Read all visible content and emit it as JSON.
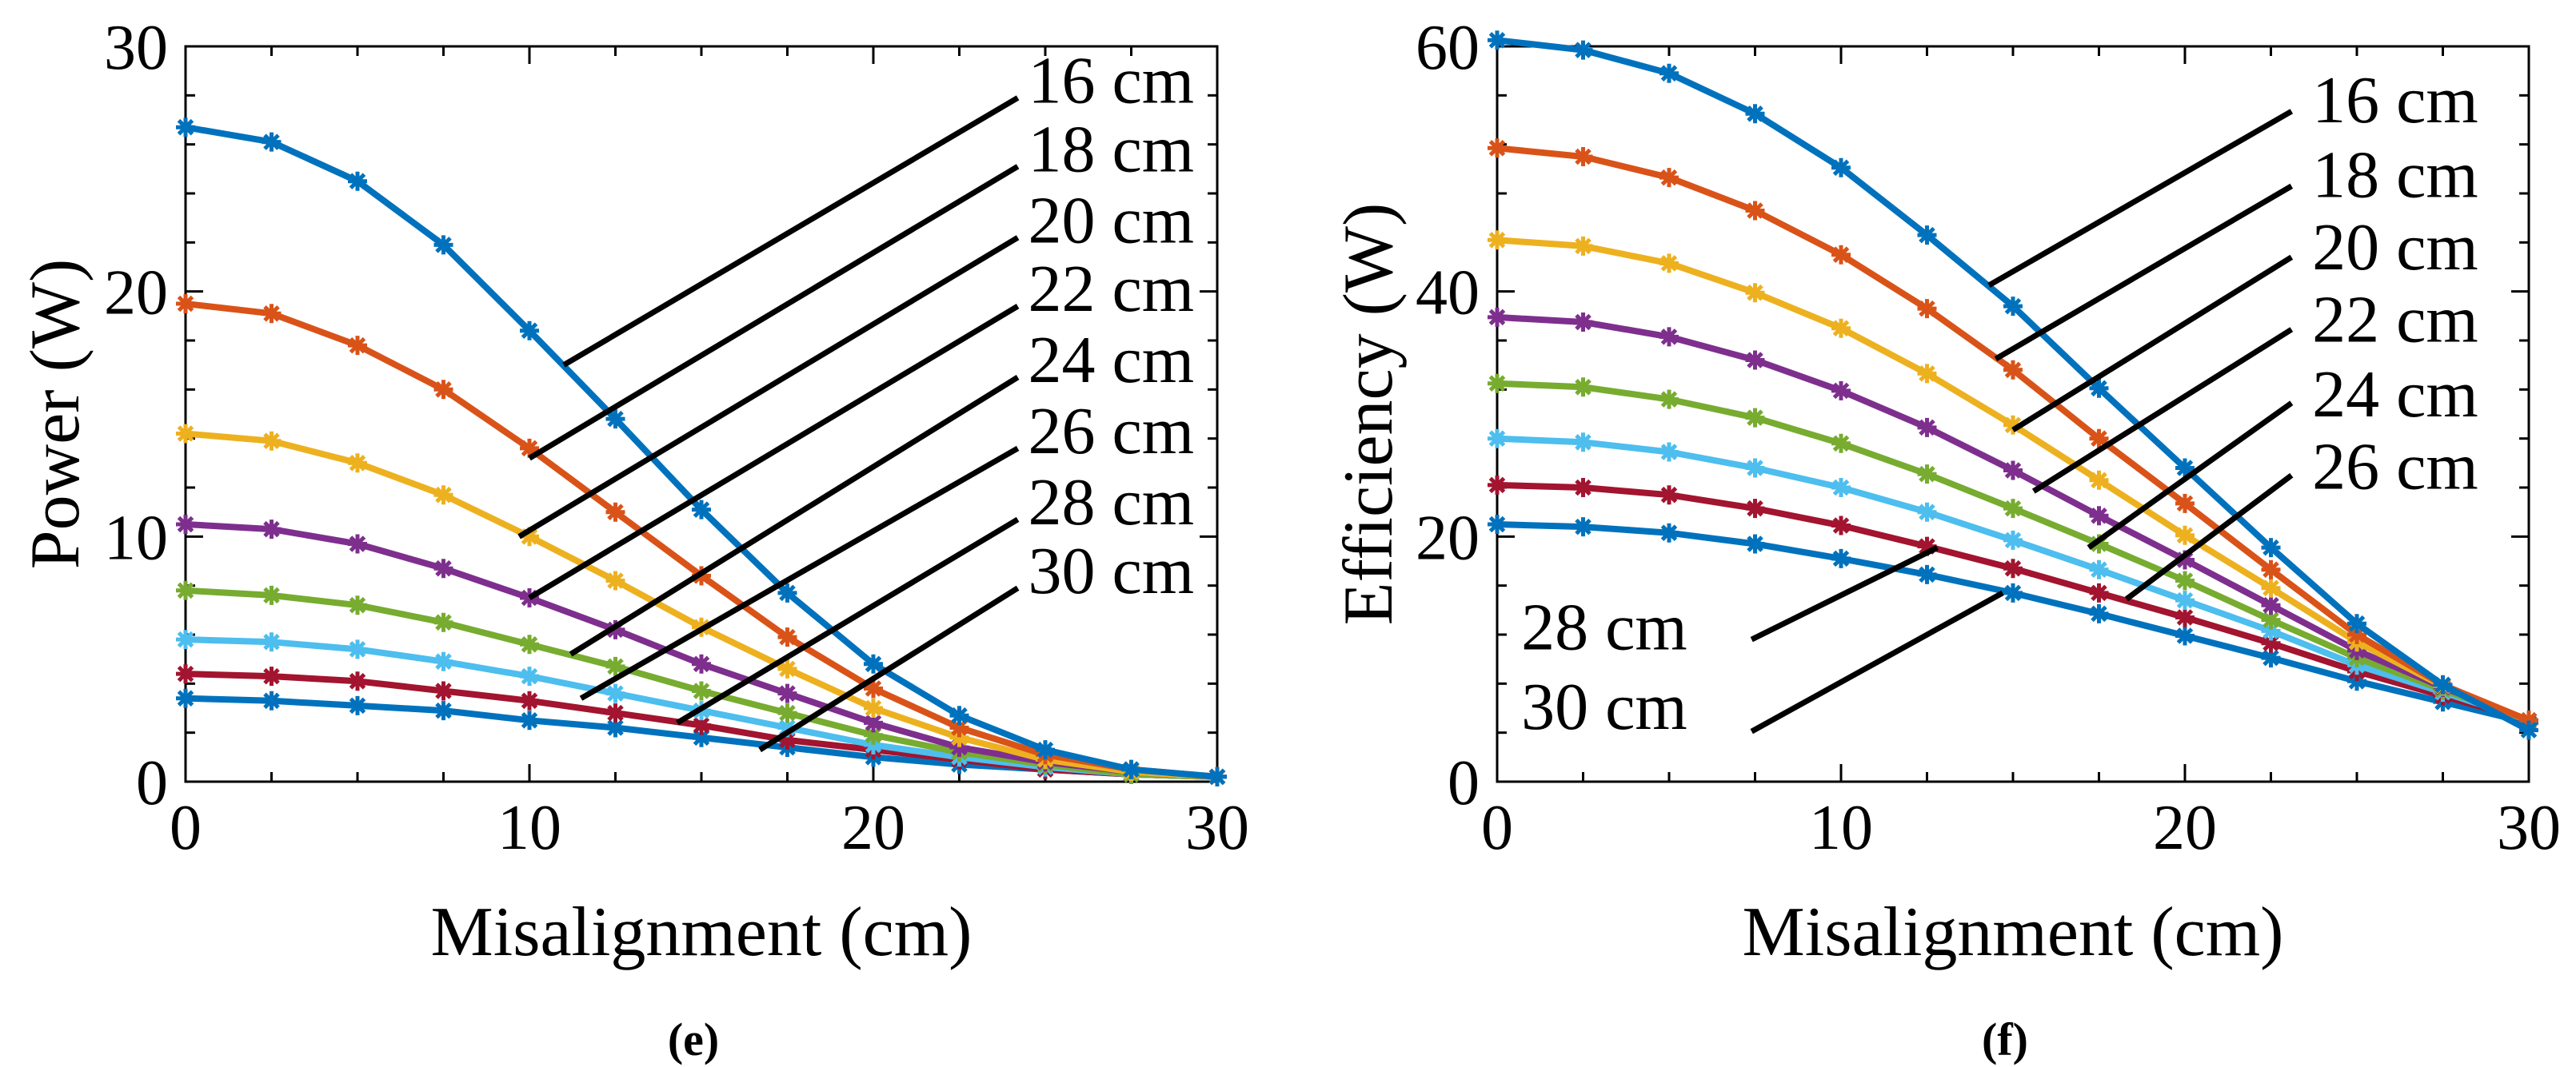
{
  "chart_data": [
    {
      "type": "line",
      "panel_caption": "(e)",
      "xlabel": "Misalignment (cm)",
      "ylabel": "Power (W)",
      "xlim": [
        0,
        30
      ],
      "ylim": [
        0,
        30
      ],
      "xticks": [
        0,
        10,
        20,
        30
      ],
      "yticks": [
        0,
        10,
        20,
        30
      ],
      "x": [
        0,
        2.5,
        5,
        7.5,
        10,
        12.5,
        15,
        17.5,
        20,
        22.5,
        25,
        27.5,
        30
      ],
      "series": [
        {
          "name": "16 cm",
          "color": "#0072BD",
          "values": [
            26.7,
            26.1,
            24.5,
            21.9,
            18.4,
            14.8,
            11.1,
            7.7,
            4.8,
            2.7,
            1.3,
            0.5,
            0.2
          ]
        },
        {
          "name": "18 cm",
          "color": "#D95319",
          "values": [
            19.5,
            19.1,
            17.8,
            16.0,
            13.6,
            11.0,
            8.4,
            5.9,
            3.8,
            2.2,
            1.1,
            0.5,
            0.2
          ]
        },
        {
          "name": "20 cm",
          "color": "#EDB120",
          "values": [
            14.2,
            13.9,
            13.0,
            11.7,
            10.0,
            8.2,
            6.3,
            4.6,
            3.0,
            1.8,
            0.9,
            0.4,
            0.2
          ]
        },
        {
          "name": "22 cm",
          "color": "#7E2F8E",
          "values": [
            10.5,
            10.3,
            9.7,
            8.7,
            7.5,
            6.2,
            4.8,
            3.6,
            2.4,
            1.4,
            0.8,
            0.4,
            0.2
          ]
        },
        {
          "name": "24 cm",
          "color": "#77AC30",
          "values": [
            7.8,
            7.6,
            7.2,
            6.5,
            5.6,
            4.7,
            3.7,
            2.8,
            1.9,
            1.2,
            0.7,
            0.3,
            0.2
          ]
        },
        {
          "name": "26 cm",
          "color": "#4DBEEE",
          "values": [
            5.8,
            5.7,
            5.4,
            4.9,
            4.3,
            3.6,
            2.9,
            2.2,
            1.5,
            1.0,
            0.6,
            0.3,
            0.2
          ]
        },
        {
          "name": "28 cm",
          "color": "#A2142F",
          "values": [
            4.4,
            4.3,
            4.1,
            3.7,
            3.3,
            2.8,
            2.3,
            1.7,
            1.3,
            0.9,
            0.5,
            0.3,
            0.2
          ]
        },
        {
          "name": "30 cm",
          "color": "#0072BD",
          "values": [
            3.4,
            3.3,
            3.1,
            2.9,
            2.5,
            2.2,
            1.8,
            1.4,
            1.0,
            0.7,
            0.5,
            0.3,
            0.2
          ]
        }
      ],
      "annotations": [
        {
          "text": "16 cm",
          "text_at": [
            24.5,
            27.7
          ],
          "from": [
            24.2,
            27.9
          ],
          "to": [
            11.0,
            17.0
          ]
        },
        {
          "text": "18 cm",
          "text_at": [
            24.5,
            24.9
          ],
          "from": [
            24.2,
            25.1
          ],
          "to": [
            10.0,
            13.2
          ]
        },
        {
          "text": "20 cm",
          "text_at": [
            24.5,
            22.0
          ],
          "from": [
            24.2,
            22.2
          ],
          "to": [
            9.7,
            10.0
          ]
        },
        {
          "text": "22 cm",
          "text_at": [
            24.5,
            19.2
          ],
          "from": [
            24.2,
            19.4
          ],
          "to": [
            10.0,
            7.5
          ]
        },
        {
          "text": "24 cm",
          "text_at": [
            24.5,
            16.3
          ],
          "from": [
            24.2,
            16.5
          ],
          "to": [
            11.2,
            5.2
          ]
        },
        {
          "text": "26 cm",
          "text_at": [
            24.5,
            13.4
          ],
          "from": [
            24.2,
            13.6
          ],
          "to": [
            11.5,
            3.4
          ]
        },
        {
          "text": "28 cm",
          "text_at": [
            24.5,
            10.5
          ],
          "from": [
            24.2,
            10.7
          ],
          "to": [
            14.3,
            2.4
          ]
        },
        {
          "text": "30 cm",
          "text_at": [
            24.5,
            7.7
          ],
          "from": [
            24.2,
            7.9
          ],
          "to": [
            16.7,
            1.3
          ]
        }
      ]
    },
    {
      "type": "line",
      "panel_caption": "(f)",
      "xlabel": "Misalignment (cm)",
      "ylabel": "Efficiency (W)",
      "xlim": [
        0,
        30
      ],
      "ylim": [
        0,
        60
      ],
      "xticks": [
        0,
        10,
        20,
        30
      ],
      "yticks": [
        0,
        20,
        40,
        60
      ],
      "x": [
        0,
        2.5,
        5,
        7.5,
        10,
        12.5,
        15,
        17.5,
        20,
        22.5,
        25,
        27.5,
        30
      ],
      "series": [
        {
          "name": "16 cm",
          "color": "#0072BD",
          "values": [
            60.5,
            59.7,
            57.8,
            54.5,
            50.1,
            44.6,
            38.8,
            32.1,
            25.6,
            19.1,
            12.9,
            7.9,
            4.2
          ]
        },
        {
          "name": "18 cm",
          "color": "#D95319",
          "values": [
            51.7,
            51.0,
            49.3,
            46.6,
            43.0,
            38.6,
            33.6,
            28.0,
            22.7,
            17.3,
            12.0,
            7.9,
            5.0
          ]
        },
        {
          "name": "20 cm",
          "color": "#EDB120",
          "values": [
            44.2,
            43.7,
            42.3,
            39.9,
            37.0,
            33.3,
            29.1,
            24.6,
            20.1,
            15.8,
            11.4,
            7.8,
            5.0
          ]
        },
        {
          "name": "22 cm",
          "color": "#7E2F8E",
          "values": [
            37.9,
            37.5,
            36.3,
            34.4,
            31.9,
            28.9,
            25.4,
            21.7,
            18.1,
            14.4,
            10.7,
            7.7,
            5.0
          ]
        },
        {
          "name": "24 cm",
          "color": "#77AC30",
          "values": [
            32.5,
            32.2,
            31.2,
            29.7,
            27.6,
            25.1,
            22.3,
            19.4,
            16.4,
            13.2,
            10.1,
            7.5,
            5.0
          ]
        },
        {
          "name": "26 cm",
          "color": "#4DBEEE",
          "values": [
            28.0,
            27.7,
            26.9,
            25.6,
            24.0,
            22.0,
            19.7,
            17.3,
            14.8,
            12.3,
            9.5,
            7.3,
            5.0
          ]
        },
        {
          "name": "28 cm",
          "color": "#A2142F",
          "values": [
            24.2,
            24.0,
            23.4,
            22.3,
            20.9,
            19.2,
            17.4,
            15.4,
            13.4,
            11.3,
            9.0,
            7.0,
            5.0
          ]
        },
        {
          "name": "30 cm",
          "color": "#0072BD",
          "values": [
            21.0,
            20.8,
            20.3,
            19.4,
            18.2,
            16.9,
            15.4,
            13.7,
            11.9,
            10.1,
            8.2,
            6.5,
            4.8
          ]
        }
      ],
      "annotations": [
        {
          "text": "16 cm",
          "text_at": [
            23.7,
            53.8
          ],
          "from": [
            23.1,
            54.7
          ],
          "to": [
            14.3,
            40.5
          ]
        },
        {
          "text": "18 cm",
          "text_at": [
            23.7,
            47.7
          ],
          "from": [
            23.1,
            48.6
          ],
          "to": [
            14.5,
            34.5
          ]
        },
        {
          "text": "20 cm",
          "text_at": [
            23.7,
            41.8
          ],
          "from": [
            23.1,
            42.8
          ],
          "to": [
            15.0,
            28.7
          ]
        },
        {
          "text": "22 cm",
          "text_at": [
            23.7,
            35.9
          ],
          "from": [
            23.1,
            36.9
          ],
          "to": [
            15.6,
            23.7
          ]
        },
        {
          "text": "24 cm",
          "text_at": [
            23.7,
            29.8
          ],
          "from": [
            23.1,
            30.9
          ],
          "to": [
            17.2,
            19.1
          ]
        },
        {
          "text": "26 cm",
          "text_at": [
            23.7,
            23.9
          ],
          "from": [
            23.1,
            25.0
          ],
          "to": [
            18.3,
            14.9
          ]
        },
        {
          "text": "28 cm",
          "text_at": [
            0.7,
            10.8
          ],
          "from": [
            7.4,
            11.6
          ],
          "to": [
            12.8,
            19.1
          ]
        },
        {
          "text": "30 cm",
          "text_at": [
            0.7,
            4.3
          ],
          "from": [
            7.4,
            4.1
          ],
          "to": [
            14.7,
            15.4
          ]
        }
      ]
    }
  ]
}
